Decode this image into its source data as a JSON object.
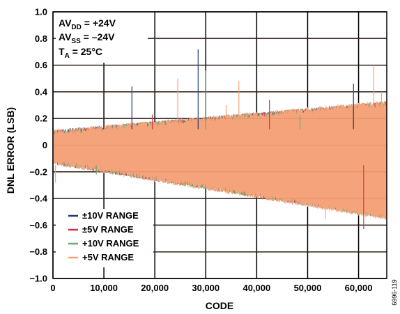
{
  "chart_data": {
    "type": "line",
    "title": "",
    "xlabel": "CODE",
    "ylabel": "DNL ERROR (LSB)",
    "xlim": [
      0,
      65535
    ],
    "ylim": [
      -1.0,
      1.0
    ],
    "x_ticks": [
      0,
      10000,
      20000,
      30000,
      40000,
      50000,
      60000
    ],
    "x_tick_labels": [
      "0",
      "10,000",
      "20,000",
      "30,000",
      "40,000",
      "50,000",
      "60,000"
    ],
    "y_ticks": [
      1.0,
      0.8,
      0.6,
      0.4,
      0.2,
      0,
      -0.2,
      -0.4,
      -0.6,
      -0.8,
      -1.0
    ],
    "y_tick_labels": [
      "1.0",
      "0.8",
      "0.6",
      "0.4",
      "0.2",
      "0",
      "−0.2",
      "−0.4",
      "−0.6",
      "−0.8",
      "−1.0"
    ],
    "grid": true,
    "legend_position": "bottom-left",
    "annotations": {
      "avdd": {
        "main": "AV",
        "sub": "DD",
        "rest": " = +24V"
      },
      "avss": {
        "main": "AV",
        "sub": "SS",
        "rest": " = –24V"
      },
      "ta": {
        "main": "T",
        "sub": "A",
        "rest": " = 25°C"
      }
    },
    "figure_id": "6996-119",
    "series": [
      {
        "name": "±10V RANGE",
        "color": "#1f3a6e",
        "envelope": {
          "x": [
            0,
            65535
          ],
          "upper": [
            0.09,
            0.3
          ],
          "lower": [
            -0.12,
            -0.52
          ]
        }
      },
      {
        "name": "±5V RANGE",
        "color": "#d6304a",
        "envelope": {
          "x": [
            0,
            65535
          ],
          "upper": [
            0.09,
            0.3
          ],
          "lower": [
            -0.12,
            -0.52
          ]
        }
      },
      {
        "name": "+10V RANGE",
        "color": "#6fa872",
        "envelope": {
          "x": [
            0,
            65535
          ],
          "upper": [
            0.09,
            0.3
          ],
          "lower": [
            -0.12,
            -0.52
          ]
        }
      },
      {
        "name": "+5V RANGE",
        "color": "#f4a37a",
        "envelope": {
          "x": [
            0,
            65535
          ],
          "upper": [
            0.09,
            0.3
          ],
          "lower": [
            -0.12,
            -0.52
          ]
        }
      }
    ],
    "spikes": [
      {
        "x": 500,
        "y": -0.28
      },
      {
        "x": 6500,
        "y": 0.13
      },
      {
        "x": 8500,
        "y": -0.22
      },
      {
        "x": 11000,
        "y": 0.15
      },
      {
        "x": 15500,
        "y": 0.44
      },
      {
        "x": 19500,
        "y": 0.23
      },
      {
        "x": 24500,
        "y": 0.5
      },
      {
        "x": 26000,
        "y": 0.16
      },
      {
        "x": 28500,
        "y": 0.72
      },
      {
        "x": 29500,
        "y": 0.2
      },
      {
        "x": 30000,
        "y": 0.56
      },
      {
        "x": 34000,
        "y": 0.3
      },
      {
        "x": 36500,
        "y": 0.48
      },
      {
        "x": 42500,
        "y": 0.34
      },
      {
        "x": 48500,
        "y": 0.22
      },
      {
        "x": 53500,
        "y": -0.55
      },
      {
        "x": 59000,
        "y": 0.46
      },
      {
        "x": 61000,
        "y": -0.63
      },
      {
        "x": 63000,
        "y": 0.6
      },
      {
        "x": 64500,
        "y": 0.4
      }
    ]
  }
}
